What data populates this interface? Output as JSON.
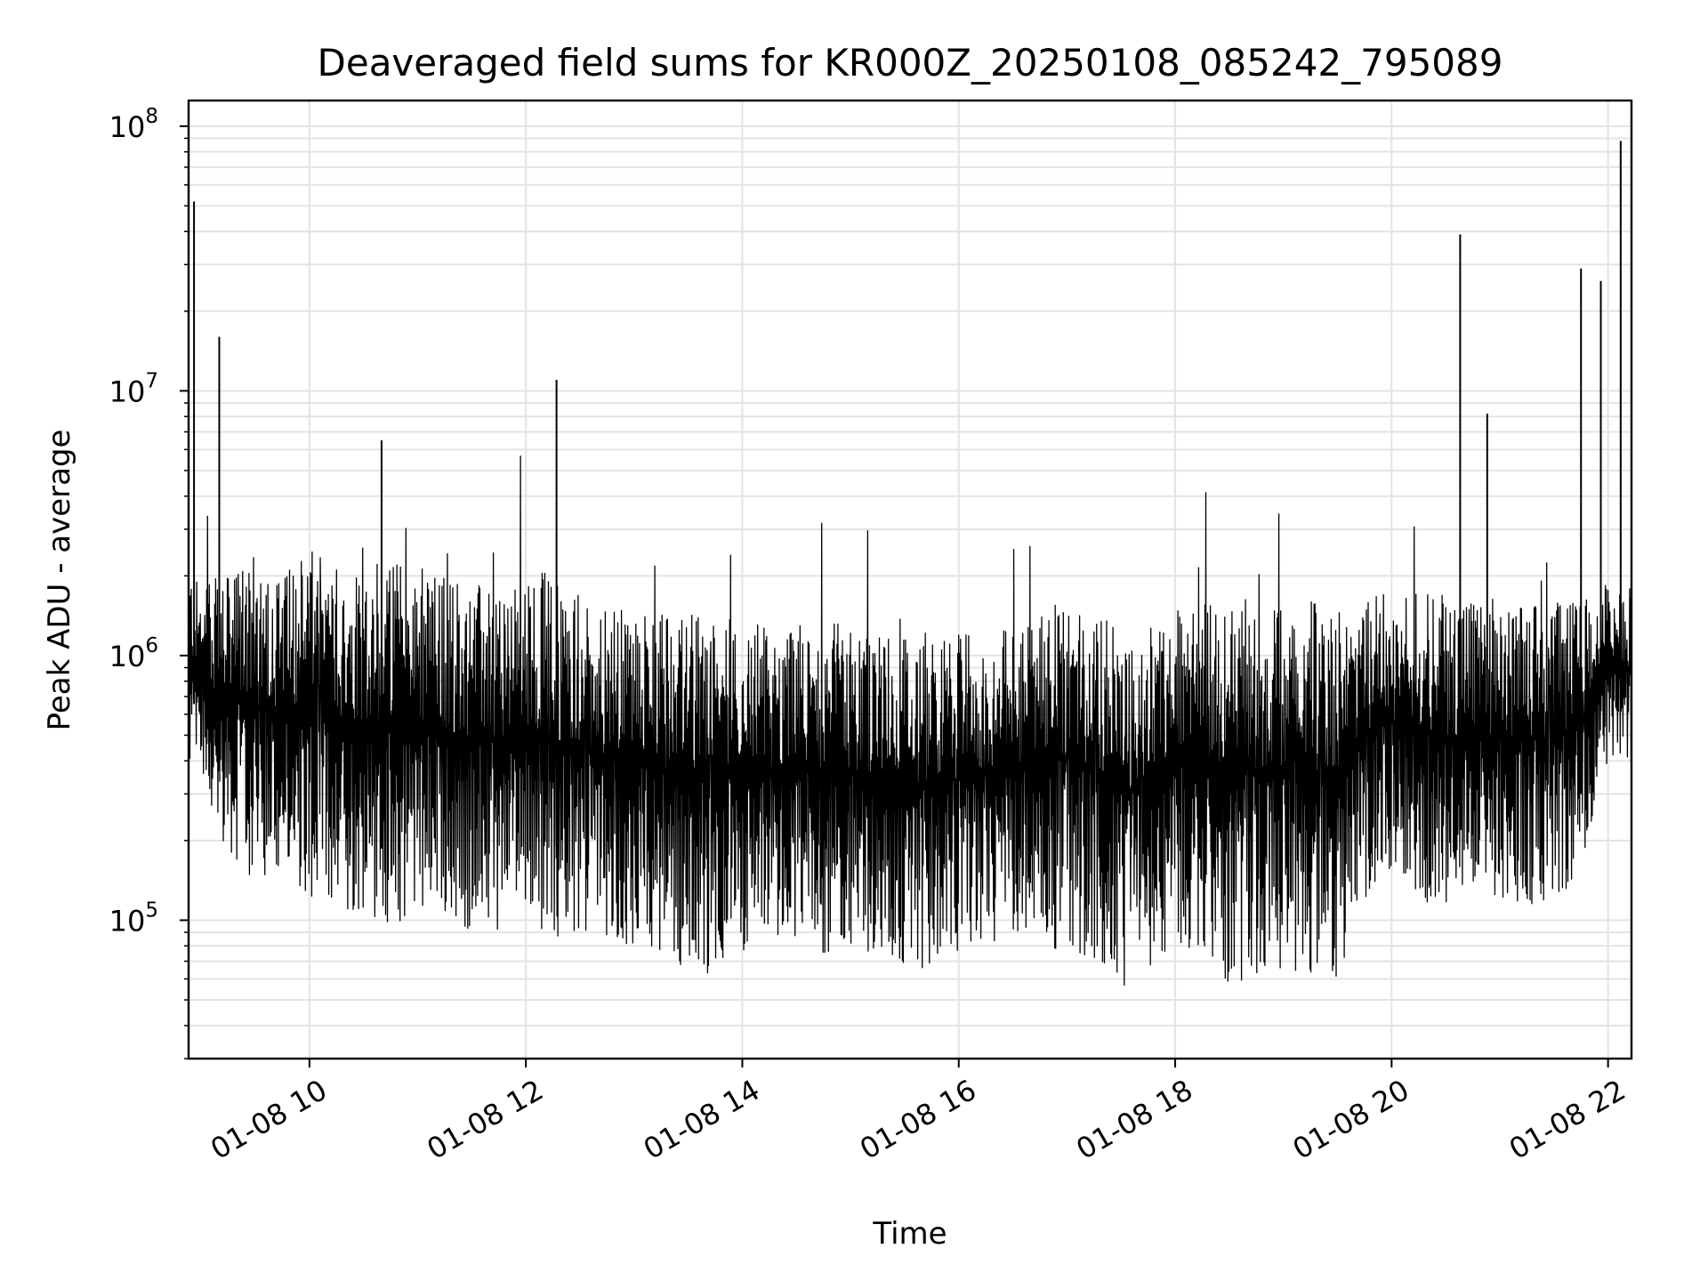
{
  "chart_data": {
    "type": "line",
    "title": "Deaveraged field sums for KR000Z_20250108_085242_795089",
    "xlabel": "Time",
    "ylabel": "Peak ADU - average",
    "yscale": "log",
    "ylim": [
      30000,
      125000000
    ],
    "xlim": [
      "2025-01-08T08:53",
      "2025-01-08T22:13"
    ],
    "grid": true,
    "line_color": "#000000",
    "x_ticks": [
      {
        "label": "01-08 10",
        "time": "2025-01-08T10:00"
      },
      {
        "label": "01-08 12",
        "time": "2025-01-08T12:00"
      },
      {
        "label": "01-08 14",
        "time": "2025-01-08T14:00"
      },
      {
        "label": "01-08 16",
        "time": "2025-01-08T16:00"
      },
      {
        "label": "01-08 18",
        "time": "2025-01-08T18:00"
      },
      {
        "label": "01-08 20",
        "time": "2025-01-08T20:00"
      },
      {
        "label": "01-08 22",
        "time": "2025-01-08T22:00"
      }
    ],
    "y_ticks": [
      {
        "base": "10",
        "exp": "5",
        "value": 100000
      },
      {
        "base": "10",
        "exp": "6",
        "value": 1000000
      },
      {
        "base": "10",
        "exp": "7",
        "value": 10000000
      },
      {
        "base": "10",
        "exp": "8",
        "value": 100000000
      }
    ],
    "series": [
      {
        "x": [
          "2025-01-08T08:53",
          "2025-01-08T09:00",
          "2025-01-08T09:15",
          "2025-01-08T09:30",
          "2025-01-08T09:45",
          "2025-01-08T10:00",
          "2025-01-08T10:15",
          "2025-01-08T10:30",
          "2025-01-08T10:45",
          "2025-01-08T11:00",
          "2025-01-08T11:15",
          "2025-01-08T11:30",
          "2025-01-08T11:45",
          "2025-01-08T12:00",
          "2025-01-08T12:15",
          "2025-01-08T12:30",
          "2025-01-08T12:45",
          "2025-01-08T13:00",
          "2025-01-08T13:15",
          "2025-01-08T13:30",
          "2025-01-08T13:45",
          "2025-01-08T14:00",
          "2025-01-08T14:15",
          "2025-01-08T14:30",
          "2025-01-08T14:45",
          "2025-01-08T15:00",
          "2025-01-08T15:15",
          "2025-01-08T15:30",
          "2025-01-08T15:45",
          "2025-01-08T16:00",
          "2025-01-08T16:15",
          "2025-01-08T16:30",
          "2025-01-08T16:45",
          "2025-01-08T17:00",
          "2025-01-08T17:15",
          "2025-01-08T17:30",
          "2025-01-08T17:45",
          "2025-01-08T18:00",
          "2025-01-08T18:15",
          "2025-01-08T18:30",
          "2025-01-08T18:45",
          "2025-01-08T19:00",
          "2025-01-08T19:15",
          "2025-01-08T19:30",
          "2025-01-08T19:45",
          "2025-01-08T20:00",
          "2025-01-08T20:15",
          "2025-01-08T20:30",
          "2025-01-08T20:45",
          "2025-01-08T21:00",
          "2025-01-08T21:15",
          "2025-01-08T21:30",
          "2025-01-08T21:45",
          "2025-01-08T22:00",
          "2025-01-08T22:13"
        ],
        "low": [
          350000,
          300000,
          180000,
          130000,
          150000,
          120000,
          110000,
          100000,
          90000,
          100000,
          95000,
          90000,
          90000,
          100000,
          85000,
          90000,
          85000,
          80000,
          70000,
          65000,
          62000,
          70000,
          80000,
          70000,
          75000,
          80000,
          70000,
          65000,
          60000,
          75000,
          80000,
          80000,
          75000,
          80000,
          70000,
          55000,
          65000,
          80000,
          70000,
          58000,
          55000,
          60000,
          60000,
          60000,
          120000,
          150000,
          120000,
          110000,
          110000,
          110000,
          115000,
          110000,
          150000,
          400000,
          350000
        ],
        "high": [
          2200000,
          1800000,
          2000000,
          2400000,
          2000000,
          2500000,
          2200000,
          2300000,
          2400000,
          2000000,
          2100000,
          1900000,
          1800000,
          2200000,
          2000000,
          1700000,
          1500000,
          1500000,
          1450000,
          1450000,
          1400000,
          1400000,
          1300000,
          1350000,
          1350000,
          1300000,
          1200000,
          1200000,
          1200000,
          1200000,
          1200000,
          1300000,
          1500000,
          1600000,
          1500000,
          1200000,
          1300000,
          1500000,
          1550000,
          1600000,
          1650000,
          1600000,
          1600000,
          1600000,
          1700000,
          1700000,
          1750000,
          1700000,
          1700000,
          1650000,
          1600000,
          1600000,
          1600000,
          1900000,
          1800000
        ],
        "spikes": [
          {
            "time": "2025-01-08T08:56",
            "value": 52000000
          },
          {
            "time": "2025-01-08T09:10",
            "value": 16000000
          },
          {
            "time": "2025-01-08T12:17",
            "value": 11000000
          },
          {
            "time": "2025-01-08T10:40",
            "value": 6500000
          },
          {
            "time": "2025-01-08T20:38",
            "value": 39000000
          },
          {
            "time": "2025-01-08T20:53",
            "value": 8200000
          },
          {
            "time": "2025-01-08T21:45",
            "value": 29000000
          },
          {
            "time": "2025-01-08T21:56",
            "value": 26000000
          },
          {
            "time": "2025-01-08T22:07",
            "value": 88000000
          }
        ]
      }
    ]
  }
}
